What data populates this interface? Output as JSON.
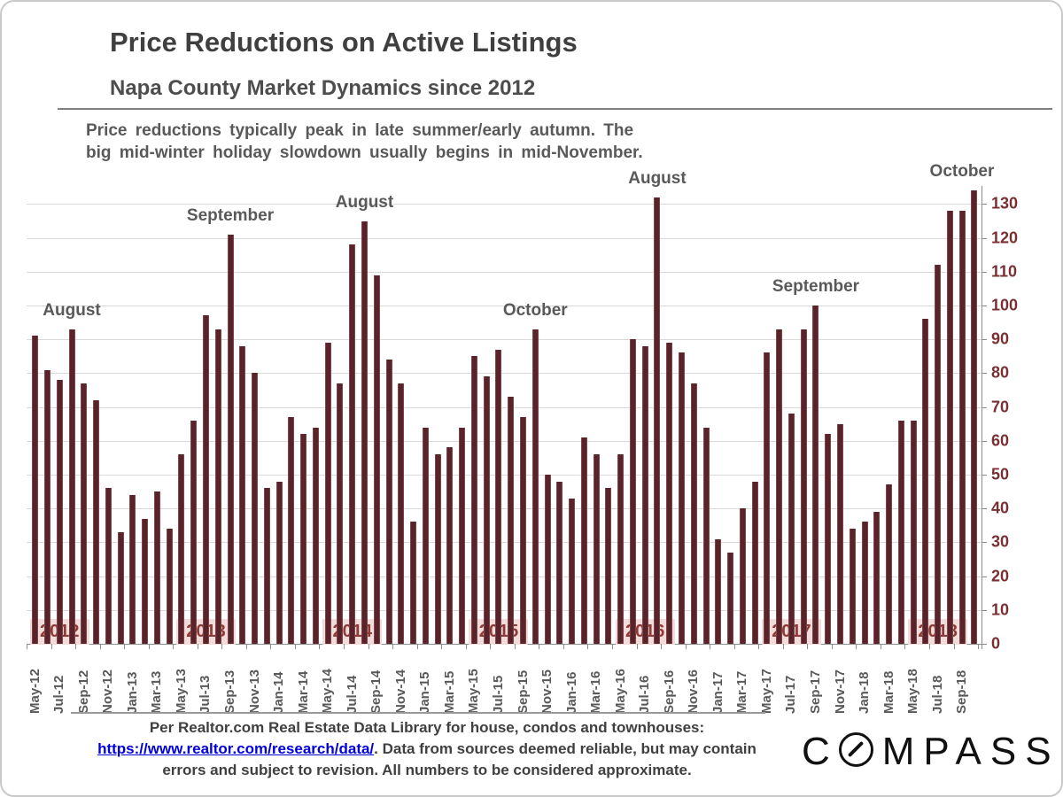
{
  "header": {
    "title": "Price Reductions on Active Listings",
    "subtitle": "Napa County Market Dynamics since 2012",
    "note_line1": "Price reductions typically peak in late summer/early autumn. The",
    "note_line2": "big mid-winter holiday slowdown usually begins in mid-November."
  },
  "chart_data": {
    "type": "bar",
    "title": "Price Reductions on Active Listings",
    "xlabel": "",
    "ylabel": "",
    "x": [
      "May-12",
      "Jun-12",
      "Jul-12",
      "Aug-12",
      "Sep-12",
      "Oct-12",
      "Nov-12",
      "Dec-12",
      "Jan-13",
      "Feb-13",
      "Mar-13",
      "Apr-13",
      "May-13",
      "Jun-13",
      "Jul-13",
      "Aug-13",
      "Sep-13",
      "Oct-13",
      "Nov-13",
      "Dec-13",
      "Jan-14",
      "Feb-14",
      "Mar-14",
      "Apr-14",
      "May-14",
      "Jun-14",
      "Jul-14",
      "Aug-14",
      "Sep-14",
      "Oct-14",
      "Nov-14",
      "Dec-14",
      "Jan-15",
      "Feb-15",
      "Mar-15",
      "Apr-15",
      "May-15",
      "Jun-15",
      "Jul-15",
      "Aug-15",
      "Sep-15",
      "Oct-15",
      "Nov-15",
      "Dec-15",
      "Jan-16",
      "Feb-16",
      "Mar-16",
      "Apr-16",
      "May-16",
      "Jun-16",
      "Jul-16",
      "Aug-16",
      "Sep-16",
      "Oct-16",
      "Nov-16",
      "Dec-16",
      "Jan-17",
      "Feb-17",
      "Mar-17",
      "Apr-17",
      "May-17",
      "Jun-17",
      "Jul-17",
      "Aug-17",
      "Sep-17",
      "Oct-17",
      "Nov-17",
      "Dec-17",
      "Jan-18",
      "Feb-18",
      "Mar-18",
      "Apr-18",
      "May-18",
      "Jun-18",
      "Jul-18",
      "Aug-18",
      "Sep-18",
      "Oct-18"
    ],
    "values": [
      91,
      81,
      78,
      93,
      77,
      72,
      46,
      33,
      44,
      37,
      45,
      34,
      56,
      66,
      97,
      93,
      121,
      88,
      80,
      46,
      48,
      67,
      62,
      64,
      89,
      77,
      118,
      125,
      109,
      84,
      77,
      36,
      64,
      56,
      58,
      64,
      85,
      79,
      87,
      73,
      67,
      93,
      50,
      48,
      43,
      61,
      56,
      46,
      56,
      90,
      88,
      132,
      89,
      86,
      77,
      64,
      31,
      27,
      40,
      48,
      86,
      93,
      68,
      93,
      100,
      62,
      65,
      34,
      36,
      39,
      47,
      66,
      66,
      96,
      112,
      128,
      128,
      134
    ],
    "x_tick_every": 2,
    "y_axis": {
      "min": 0,
      "max": 130,
      "step": 10,
      "side": "right"
    },
    "ylim": [
      0,
      135
    ],
    "grid": true,
    "legend": "none",
    "bar_color": "#5a222a",
    "axis_label_color": "#7a2f33",
    "year_badge_bg": "#f2dcdb",
    "year_badge_color": "#8e3a37",
    "years": [
      "2012",
      "2013",
      "2014",
      "2015",
      "2016",
      "2017",
      "2018"
    ],
    "annotations": [
      {
        "label": "August",
        "month": "Aug-12"
      },
      {
        "label": "September",
        "month": "Sep-13"
      },
      {
        "label": "August",
        "month": "Aug-14"
      },
      {
        "label": "October",
        "month": "Oct-15"
      },
      {
        "label": "August",
        "month": "Aug-16"
      },
      {
        "label": "September",
        "month": "Sep-17"
      },
      {
        "label": "October",
        "month": "Oct-18"
      }
    ]
  },
  "footer": {
    "line1": "Per Realtor.com Real Estate  Data Library for house,  condos  and townhouses:",
    "link_text": "https://www.realtor.com/research/data/",
    "line2_rest": ". Data from sources  deemed reliable, but may contain",
    "line3": "errors and subject to revision. All numbers to be considered approximate."
  },
  "logo": {
    "c": "C",
    "rest": "MPASS"
  }
}
